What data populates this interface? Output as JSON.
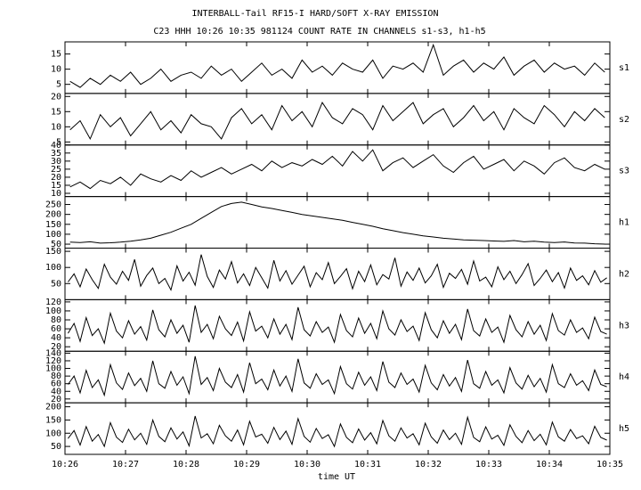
{
  "chart_data": {
    "title": "INTERBALL-Tail RF15-I HARD/SOFT X-RAY EMISSION",
    "subtitle": "C23 HHH 10:26 10:35 981124  COUNT RATE IN CHANNELS s1-s3, h1-h5",
    "xlabel": "time UT",
    "xlim": [
      626,
      635
    ],
    "xticks": [
      {
        "value": 626,
        "label": "10:26"
      },
      {
        "value": 627,
        "label": "10:27"
      },
      {
        "value": 628,
        "label": "10:28"
      },
      {
        "value": 629,
        "label": "10:29"
      },
      {
        "value": 630,
        "label": "10:30"
      },
      {
        "value": 631,
        "label": "10:31"
      },
      {
        "value": 632,
        "label": "10:32"
      },
      {
        "value": 633,
        "label": "10:33"
      },
      {
        "value": 634,
        "label": "10:34"
      },
      {
        "value": 635,
        "label": "10:35"
      }
    ],
    "color": "#000000",
    "panels": [
      {
        "type": "line",
        "label": "s1",
        "ylim": [
          2,
          19
        ],
        "yticks": [
          5,
          10,
          15
        ],
        "values": [
          6,
          4,
          7,
          5,
          8,
          6,
          9,
          5,
          7,
          10,
          6,
          8,
          9,
          7,
          11,
          8,
          10,
          6,
          9,
          12,
          8,
          10,
          7,
          13,
          9,
          11,
          8,
          12,
          10,
          9,
          13,
          7,
          11,
          10,
          12,
          9,
          18,
          8,
          11,
          13,
          9,
          12,
          10,
          14,
          8,
          11,
          13,
          9,
          12,
          10,
          11,
          8,
          12,
          9
        ]
      },
      {
        "type": "line",
        "label": "s2",
        "ylim": [
          4,
          21
        ],
        "yticks": [
          5,
          10,
          15,
          20
        ],
        "values": [
          9,
          12,
          6,
          14,
          10,
          13,
          7,
          11,
          15,
          9,
          12,
          8,
          14,
          11,
          10,
          6,
          13,
          16,
          11,
          14,
          9,
          17,
          12,
          15,
          10,
          18,
          13,
          11,
          16,
          14,
          9,
          17,
          12,
          15,
          18,
          11,
          14,
          16,
          10,
          13,
          17,
          12,
          15,
          9,
          16,
          13,
          11,
          17,
          14,
          10,
          15,
          12,
          16,
          13
        ]
      },
      {
        "type": "line",
        "label": "s3",
        "ylim": [
          8,
          40
        ],
        "yticks": [
          10,
          15,
          20,
          25,
          30,
          35,
          40
        ],
        "values": [
          14,
          17,
          13,
          18,
          16,
          20,
          15,
          22,
          19,
          17,
          21,
          18,
          24,
          20,
          23,
          26,
          22,
          25,
          28,
          24,
          30,
          26,
          29,
          27,
          31,
          28,
          33,
          27,
          36,
          30,
          37,
          24,
          29,
          32,
          26,
          30,
          34,
          27,
          23,
          29,
          33,
          25,
          28,
          31,
          24,
          30,
          27,
          22,
          29,
          32,
          26,
          24,
          28,
          25
        ]
      },
      {
        "type": "line",
        "label": "h1",
        "ylim": [
          30,
          290
        ],
        "yticks": [
          50,
          100,
          150,
          200,
          250
        ],
        "values": [
          60,
          58,
          62,
          55,
          57,
          60,
          65,
          72,
          80,
          95,
          110,
          130,
          150,
          180,
          210,
          240,
          255,
          262,
          250,
          238,
          230,
          220,
          210,
          200,
          192,
          185,
          178,
          170,
          160,
          150,
          140,
          128,
          118,
          108,
          100,
          92,
          86,
          80,
          76,
          72,
          70,
          68,
          66,
          64,
          68,
          62,
          65,
          60,
          58,
          61,
          56,
          55,
          52,
          50
        ]
      },
      {
        "type": "line",
        "label": "h2",
        "ylim": [
          0,
          160
        ],
        "yticks": [
          50,
          100,
          150
        ],
        "values": [
          55,
          80,
          40,
          95,
          62,
          35,
          110,
          70,
          48,
          88,
          60,
          125,
          42,
          75,
          98,
          50,
          66,
          30,
          105,
          58,
          85,
          45,
          140,
          72,
          38,
          92,
          64,
          118,
          52,
          80,
          44,
          100,
          68,
          36,
          122,
          58,
          90,
          48,
          76,
          104,
          40,
          84,
          62,
          115,
          50,
          72,
          96,
          34,
          88,
          56,
          108,
          46,
          78,
          64,
          130,
          42,
          86,
          60,
          98,
          52,
          74,
          110,
          38,
          82,
          66,
          94,
          48,
          120,
          58,
          70,
          40,
          102,
          62,
          88,
          50,
          78,
          112,
          44,
          66,
          92,
          56,
          84,
          36,
          98,
          60,
          74,
          46,
          90,
          54,
          68
        ]
      },
      {
        "type": "line",
        "label": "h3",
        "ylim": [
          10,
          125
        ],
        "yticks": [
          20,
          40,
          60,
          80,
          100,
          120
        ],
        "values": [
          50,
          72,
          32,
          85,
          45,
          60,
          28,
          95,
          55,
          40,
          78,
          48,
          65,
          35,
          102,
          58,
          42,
          80,
          50,
          68,
          30,
          112,
          52,
          70,
          38,
          88,
          60,
          45,
          75,
          33,
          98,
          55,
          66,
          40,
          82,
          48,
          70,
          36,
          108,
          58,
          44,
          76,
          52,
          64,
          30,
          92,
          56,
          42,
          84,
          50,
          72,
          38,
          100,
          60,
          46,
          80,
          54,
          66,
          34,
          96,
          58,
          40,
          78,
          50,
          70,
          36,
          104,
          56,
          44,
          82,
          52,
          64,
          30,
          90,
          58,
          42,
          76,
          48,
          68,
          34,
          94,
          56,
          46,
          80,
          52,
          62,
          38,
          86,
          54,
          48
        ]
      },
      {
        "type": "line",
        "label": "h4",
        "ylim": [
          10,
          145
        ],
        "yticks": [
          20,
          40,
          60,
          80,
          100,
          120,
          140
        ],
        "values": [
          58,
          80,
          36,
          95,
          50,
          70,
          30,
          110,
          62,
          45,
          88,
          55,
          74,
          40,
          120,
          60,
          48,
          92,
          56,
          78,
          34,
          132,
          58,
          76,
          42,
          100,
          64,
          50,
          84,
          38,
          115,
          60,
          72,
          44,
          96,
          54,
          80,
          40,
          125,
          62,
          48,
          86,
          58,
          70,
          34,
          105,
          60,
          46,
          90,
          56,
          78,
          42,
          118,
          64,
          50,
          88,
          58,
          72,
          38,
          108,
          62,
          44,
          84,
          54,
          76,
          40,
          122,
          60,
          48,
          92,
          56,
          70,
          36,
          102,
          62,
          46,
          82,
          52,
          74,
          38,
          110,
          60,
          50,
          86,
          56,
          68,
          42,
          96,
          58,
          52
        ]
      },
      {
        "type": "line",
        "label": "h5",
        "ylim": [
          20,
          215
        ],
        "yticks": [
          50,
          100,
          150,
          200
        ],
        "values": [
          80,
          110,
          55,
          125,
          70,
          95,
          50,
          140,
          85,
          65,
          115,
          75,
          100,
          58,
          150,
          88,
          68,
          120,
          78,
          105,
          52,
          165,
          82,
          98,
          60,
          130,
          90,
          70,
          112,
          56,
          145,
          86,
          96,
          62,
          122,
          76,
          108,
          58,
          155,
          88,
          66,
          118,
          80,
          94,
          50,
          135,
          84,
          64,
          116,
          74,
          102,
          60,
          148,
          90,
          70,
          120,
          82,
          98,
          56,
          138,
          86,
          62,
          112,
          76,
          100,
          58,
          160,
          84,
          68,
          124,
          78,
          92,
          54,
          132,
          88,
          64,
          110,
          72,
          96,
          56,
          142,
          86,
          70,
          114,
          80,
          90,
          60,
          126,
          84,
          74
        ]
      }
    ]
  }
}
